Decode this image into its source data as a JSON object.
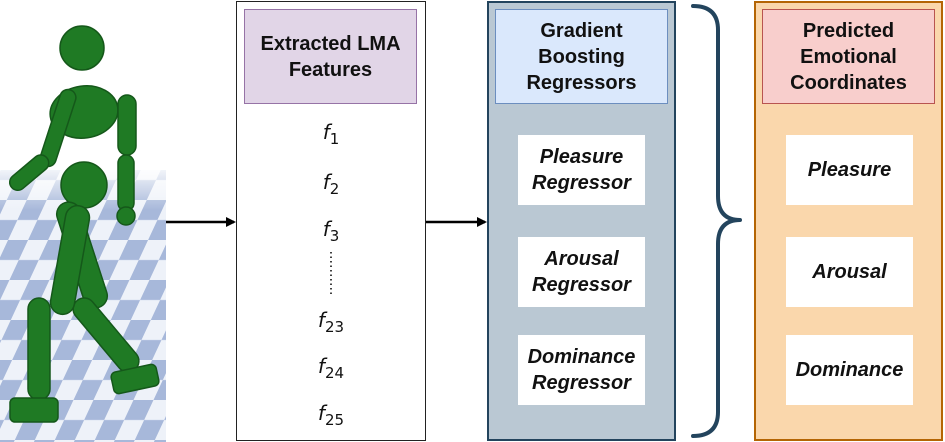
{
  "features": {
    "header": "Extracted LMA Features",
    "items": [
      {
        "symbol": "f",
        "index": "1"
      },
      {
        "symbol": "f",
        "index": "2"
      },
      {
        "symbol": "f",
        "index": "3"
      },
      {
        "symbol": "f",
        "index": "23"
      },
      {
        "symbol": "f",
        "index": "24"
      },
      {
        "symbol": "f",
        "index": "25"
      }
    ]
  },
  "regressors": {
    "header": "Gradient Boosting Regressors",
    "items": [
      "Pleasure Regressor",
      "Arousal Regressor",
      "Dominance Regressor"
    ]
  },
  "outputs": {
    "header": "Predicted Emotional Coordinates",
    "items": [
      "Pleasure",
      "Arousal",
      "Dominance"
    ]
  },
  "colors": {
    "figure": "#1f7a24",
    "floor_light": "#e9eef7",
    "floor_dark": "#a9b9d9"
  }
}
